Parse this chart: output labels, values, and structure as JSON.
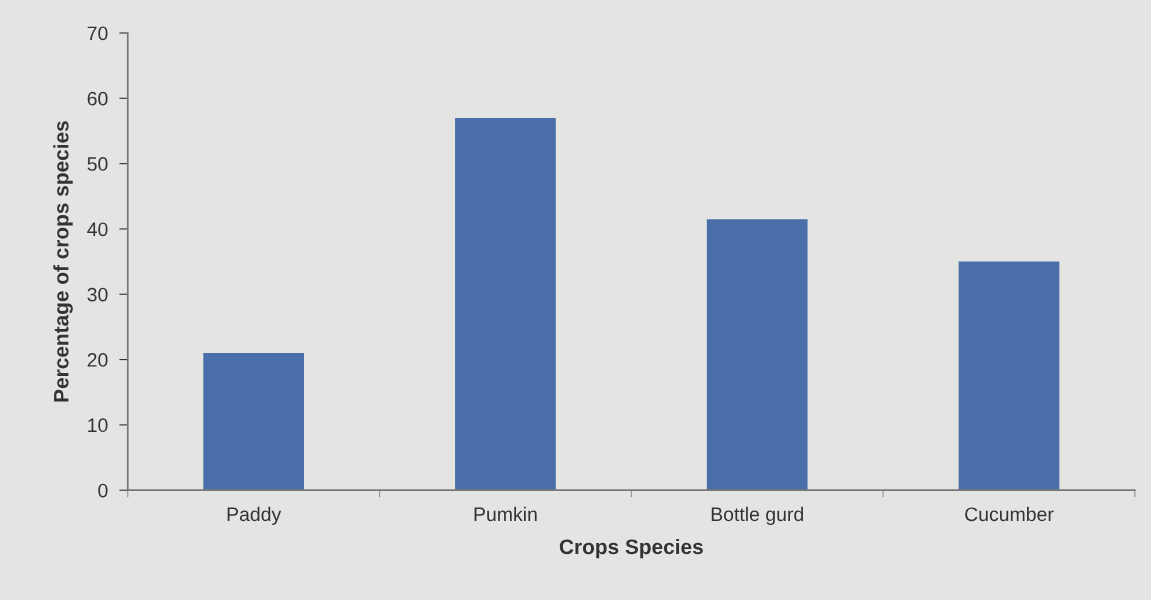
{
  "chart_data": {
    "type": "bar",
    "xlabel": "Crops Species",
    "ylabel": "Percentage of crops species",
    "categories": [
      "Paddy",
      "Pumkin",
      "Bottle gurd",
      "Cucumber"
    ],
    "values": [
      21,
      57,
      41.5,
      35
    ],
    "color": "#4a6fa8",
    "ylim": [
      0,
      70
    ],
    "yticks": [
      0,
      10,
      20,
      30,
      40,
      50,
      60,
      70
    ],
    "grid": false
  }
}
